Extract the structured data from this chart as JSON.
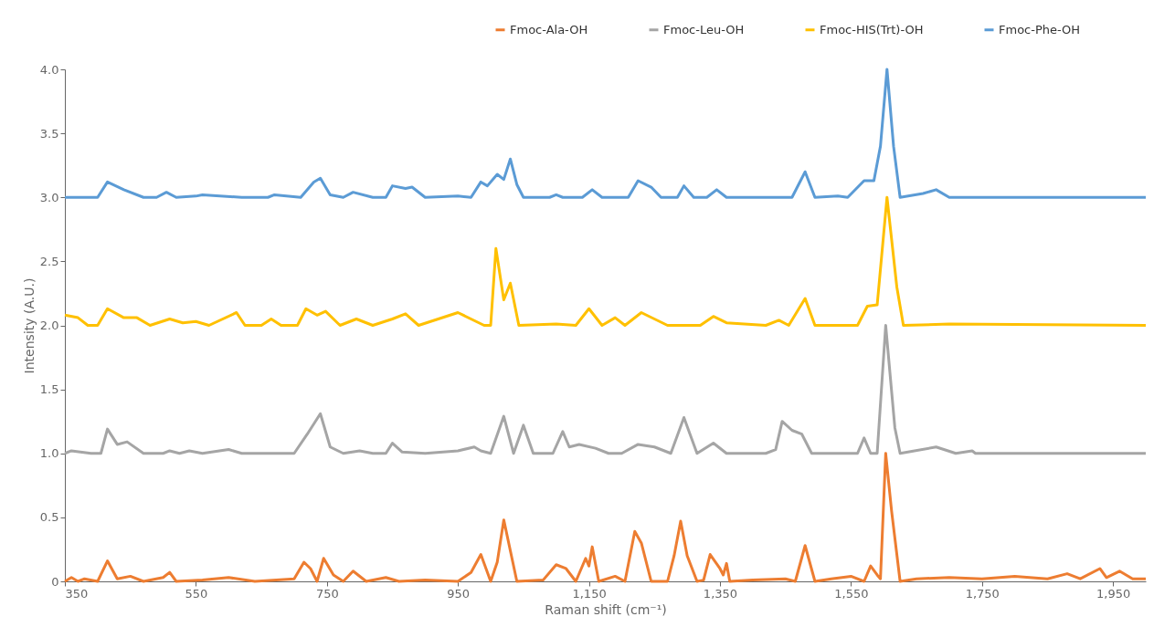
{
  "chart_data": {
    "type": "line",
    "xlabel": "Raman shift (cm⁻¹)",
    "ylabel": "Intensity (A.U.)",
    "xlim": [
      350,
      2000
    ],
    "ylim": [
      0,
      4
    ],
    "xticks": [
      350,
      550,
      750,
      950,
      {
        "value": 1150,
        "label": "1,150"
      },
      {
        "value": 1350,
        "label": "1,350"
      },
      {
        "value": 1550,
        "label": "1,550"
      },
      {
        "value": 1750,
        "label": "1,750"
      },
      {
        "value": 1950,
        "label": "1,950"
      }
    ],
    "yticks": [
      0,
      0.5,
      {
        "value": 1,
        "label": "1.0"
      },
      1.5,
      {
        "value": 2,
        "label": "2.0"
      },
      2.5,
      {
        "value": 3,
        "label": "3.0"
      },
      3.5,
      {
        "value": 4,
        "label": "4.0"
      }
    ],
    "grid": false,
    "legend": "top right",
    "marker": "none",
    "line_style": "solid",
    "series": [
      {
        "name": "Fmoc-Ala-OH",
        "color": "#ed7d31",
        "x": [
          350,
          360,
          370,
          380,
          400,
          415,
          430,
          450,
          470,
          500,
          510,
          520,
          560,
          600,
          640,
          700,
          715,
          725,
          735,
          745,
          760,
          775,
          790,
          810,
          840,
          860,
          900,
          950,
          970,
          985,
          1000,
          1010,
          1020,
          1040,
          1080,
          1100,
          1115,
          1130,
          1145,
          1150,
          1155,
          1165,
          1190,
          1205,
          1220,
          1230,
          1245,
          1270,
          1280,
          1290,
          1300,
          1315,
          1325,
          1335,
          1350,
          1355,
          1360,
          1365,
          1400,
          1450,
          1465,
          1480,
          1495,
          1520,
          1550,
          1570,
          1580,
          1590,
          1595,
          1603,
          1612,
          1625,
          1650,
          1700,
          1750,
          1800,
          1850,
          1880,
          1900,
          1930,
          1940,
          1960,
          1980,
          2000
        ],
        "values": [
          0,
          0.03,
          0,
          0.02,
          0,
          0.16,
          0.02,
          0.04,
          0,
          0.03,
          0.07,
          0,
          0.01,
          0.03,
          0,
          0.02,
          0.15,
          0.1,
          0,
          0.18,
          0.05,
          0,
          0.08,
          0,
          0.03,
          0,
          0.01,
          0,
          0.07,
          0.21,
          0,
          0.15,
          0.48,
          0,
          0.01,
          0.13,
          0.1,
          0,
          0.18,
          0.12,
          0.27,
          0,
          0.04,
          0,
          0.39,
          0.3,
          0,
          0,
          0.2,
          0.47,
          0.2,
          0,
          0.01,
          0.21,
          0.1,
          0.05,
          0.14,
          0,
          0.01,
          0.02,
          0,
          0.28,
          0,
          0.02,
          0.04,
          0,
          0.12,
          0.05,
          0.02,
          1.0,
          0.55,
          0,
          0.02,
          0.03,
          0.02,
          0.04,
          0.02,
          0.06,
          0.02,
          0.1,
          0.03,
          0.08,
          0.02,
          0.02
        ]
      },
      {
        "name": "Fmoc-Leu-OH",
        "color": "#a5a5a5",
        "x": [
          350,
          360,
          390,
          405,
          415,
          430,
          445,
          470,
          500,
          510,
          525,
          540,
          560,
          600,
          620,
          700,
          720,
          740,
          755,
          775,
          800,
          820,
          840,
          850,
          865,
          900,
          950,
          975,
          985,
          1000,
          1020,
          1035,
          1050,
          1065,
          1095,
          1110,
          1120,
          1135,
          1160,
          1180,
          1200,
          1225,
          1250,
          1275,
          1295,
          1315,
          1340,
          1360,
          1420,
          1435,
          1445,
          1460,
          1475,
          1490,
          1560,
          1570,
          1580,
          1590,
          1603,
          1617,
          1625,
          1680,
          1710,
          1735,
          1740,
          1750,
          2000
        ],
        "values": [
          1.0,
          1.02,
          1.0,
          1.0,
          1.19,
          1.07,
          1.09,
          1.0,
          1.0,
          1.02,
          1.0,
          1.02,
          1.0,
          1.03,
          1.0,
          1.0,
          1.15,
          1.31,
          1.05,
          1.0,
          1.02,
          1.0,
          1.0,
          1.08,
          1.01,
          1.0,
          1.02,
          1.05,
          1.02,
          1.0,
          1.29,
          1.0,
          1.22,
          1.0,
          1.0,
          1.17,
          1.05,
          1.07,
          1.04,
          1.0,
          1.0,
          1.07,
          1.05,
          1.0,
          1.28,
          1.0,
          1.08,
          1.0,
          1.0,
          1.03,
          1.25,
          1.18,
          1.15,
          1.0,
          1.0,
          1.12,
          1.0,
          1.0,
          2.0,
          1.2,
          1.0,
          1.05,
          1.0,
          1.02,
          1.0,
          1.0,
          1.0
        ]
      },
      {
        "name": "Fmoc-HIS(Trt)-OH",
        "color": "#ffc000",
        "x": [
          350,
          370,
          385,
          400,
          415,
          440,
          460,
          480,
          510,
          530,
          550,
          570,
          612,
          625,
          650,
          665,
          680,
          705,
          718,
          735,
          748,
          770,
          795,
          820,
          850,
          870,
          890,
          920,
          950,
          990,
          1000,
          1008,
          1020,
          1030,
          1043,
          1100,
          1130,
          1150,
          1170,
          1190,
          1205,
          1230,
          1250,
          1270,
          1320,
          1340,
          1360,
          1420,
          1440,
          1455,
          1480,
          1495,
          1560,
          1575,
          1590,
          1605,
          1620,
          1630,
          1700,
          2000
        ],
        "values": [
          2.08,
          2.06,
          2.0,
          2.0,
          2.13,
          2.06,
          2.06,
          2.0,
          2.05,
          2.02,
          2.03,
          2.0,
          2.1,
          2.0,
          2.0,
          2.05,
          2.0,
          2.0,
          2.13,
          2.08,
          2.11,
          2.0,
          2.05,
          2.0,
          2.05,
          2.09,
          2.0,
          2.05,
          2.1,
          2.0,
          2.0,
          2.6,
          2.2,
          2.33,
          2.0,
          2.01,
          2.0,
          2.13,
          2.0,
          2.06,
          2.0,
          2.1,
          2.05,
          2.0,
          2.0,
          2.07,
          2.02,
          2.0,
          2.04,
          2.0,
          2.21,
          2.0,
          2.0,
          2.15,
          2.16,
          3.0,
          2.3,
          2.0,
          2.01,
          2.0
        ]
      },
      {
        "name": "Fmoc-Phe-OH",
        "color": "#5b9bd5",
        "x": [
          350,
          400,
          415,
          440,
          470,
          490,
          505,
          520,
          550,
          560,
          620,
          660,
          670,
          710,
          730,
          740,
          755,
          775,
          790,
          820,
          840,
          850,
          870,
          880,
          900,
          950,
          970,
          985,
          995,
          1010,
          1020,
          1030,
          1040,
          1050,
          1090,
          1100,
          1110,
          1140,
          1155,
          1170,
          1210,
          1225,
          1245,
          1260,
          1285,
          1295,
          1310,
          1330,
          1345,
          1360,
          1460,
          1480,
          1495,
          1530,
          1545,
          1570,
          1585,
          1595,
          1605,
          1615,
          1625,
          1660,
          1680,
          1700,
          2000
        ],
        "values": [
          3.0,
          3.0,
          3.12,
          3.06,
          3.0,
          3.0,
          3.04,
          3.0,
          3.01,
          3.02,
          3.0,
          3.0,
          3.02,
          3.0,
          3.12,
          3.15,
          3.02,
          3.0,
          3.04,
          3.0,
          3.0,
          3.09,
          3.07,
          3.08,
          3.0,
          3.01,
          3.0,
          3.12,
          3.09,
          3.18,
          3.14,
          3.3,
          3.1,
          3.0,
          3.0,
          3.02,
          3.0,
          3.0,
          3.06,
          3.0,
          3.0,
          3.13,
          3.08,
          3.0,
          3.0,
          3.09,
          3.0,
          3.0,
          3.06,
          3.0,
          3.0,
          3.2,
          3.0,
          3.01,
          3.0,
          3.13,
          3.13,
          3.4,
          4.0,
          3.4,
          3.0,
          3.03,
          3.06,
          3.0,
          3.0
        ]
      }
    ]
  }
}
